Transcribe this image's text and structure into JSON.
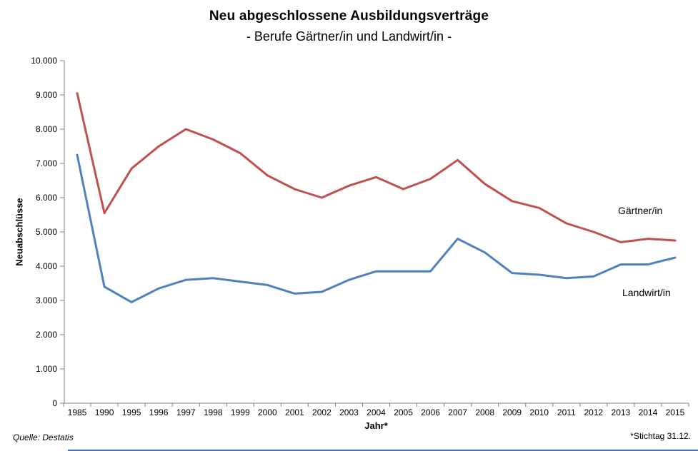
{
  "header": {
    "title": "Neu abgeschlossene Ausbildungsverträge",
    "subtitle": "- Berufe Gärtner/in und Landwirt/in -"
  },
  "footer": {
    "source": "Quelle: Destatis",
    "note": "*Stichtag 31.12."
  },
  "colors": {
    "gaertner_line": "#C0504D",
    "landwirt_line": "#4F81BD",
    "axis": "#808080",
    "text": "#000000",
    "bottom_bar": "#4472C4"
  },
  "chart_data": {
    "type": "line",
    "title": "Neu abgeschlossene Ausbildungsverträge",
    "subtitle": "- Berufe Gärtner/in und Landwirt/in -",
    "xlabel": "Jahr*",
    "ylabel": "Neuabschlüsse",
    "ylim": [
      0,
      10000
    ],
    "ytick_step": 1000,
    "ytick_labels": [
      "0",
      "1.000",
      "2.000",
      "3.000",
      "4.000",
      "5.000",
      "6.000",
      "7.000",
      "8.000",
      "9.000",
      "10.000"
    ],
    "grid": false,
    "legend_position": "inline-right-of-plot",
    "categories": [
      "1985",
      "1990",
      "1995",
      "1996",
      "1997",
      "1998",
      "1999",
      "2000",
      "2001",
      "2002",
      "2003",
      "2004",
      "2005",
      "2006",
      "2007",
      "2008",
      "2009",
      "2010",
      "2011",
      "2012",
      "2013",
      "2014",
      "2015"
    ],
    "series": [
      {
        "id": "gaertner",
        "name": "Gärtner/in",
        "color": "#C0504D",
        "values": [
          9050,
          5550,
          6850,
          7500,
          8000,
          7700,
          7300,
          6650,
          6250,
          6000,
          6350,
          6600,
          6250,
          6550,
          7100,
          6400,
          5900,
          5700,
          5250,
          5000,
          4700,
          4800,
          4750
        ]
      },
      {
        "id": "landwirt",
        "name": "Landwirt/in",
        "color": "#4F81BD",
        "values": [
          7250,
          3400,
          2950,
          3350,
          3600,
          3650,
          3550,
          3450,
          3200,
          3250,
          3600,
          3850,
          3850,
          3850,
          4800,
          4400,
          3800,
          3750,
          3650,
          3700,
          4050,
          4050,
          4250
        ]
      }
    ]
  }
}
